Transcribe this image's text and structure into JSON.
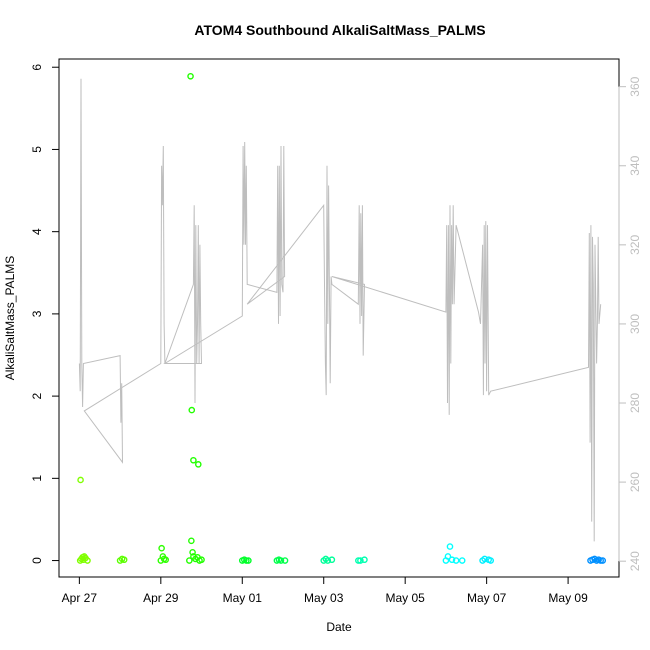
{
  "chart_data": {
    "type": "scatter",
    "title": "ATOM4 Southbound AlkaliSaltMass_PALMS",
    "xlabel": "Date",
    "ylabel": "AlkaliSaltMass_PALMS",
    "x_ticks": [
      "Apr 27",
      "Apr 29",
      "May 01",
      "May 03",
      "May 05",
      "May 07",
      "May 09"
    ],
    "x_tick_days": [
      0,
      2,
      4,
      6,
      8,
      10,
      12
    ],
    "xlim_days": [
      -0.5,
      13.25
    ],
    "ylim": [
      -0.2,
      6.1
    ],
    "y_ticks": [
      0,
      1,
      2,
      3,
      4,
      5,
      6
    ],
    "y2lim": [
      236,
      367
    ],
    "y2_ticks": [
      240,
      260,
      280,
      300,
      320,
      340,
      360
    ],
    "grid": false,
    "legend": "none",
    "series_scatter": {
      "marker": "open-circle",
      "points": [
        {
          "d": 0.02,
          "v": 0.0,
          "color": "#80ff00"
        },
        {
          "d": 0.05,
          "v": 0.02,
          "color": "#80ff00"
        },
        {
          "d": 0.08,
          "v": 0.04,
          "color": "#80ff00"
        },
        {
          "d": 0.1,
          "v": 0.01,
          "color": "#80ff00"
        },
        {
          "d": 0.12,
          "v": 0.05,
          "color": "#80ff00"
        },
        {
          "d": 0.03,
          "v": 0.98,
          "color": "#80ff00"
        },
        {
          "d": 0.15,
          "v": 0.03,
          "color": "#80ff00"
        },
        {
          "d": 0.2,
          "v": 0.0,
          "color": "#80ff00"
        },
        {
          "d": 1.0,
          "v": 0.0,
          "color": "#5cff00"
        },
        {
          "d": 1.05,
          "v": 0.02,
          "color": "#5cff00"
        },
        {
          "d": 1.1,
          "v": 0.01,
          "color": "#5cff00"
        },
        {
          "d": 2.0,
          "v": 0.0,
          "color": "#2eff00"
        },
        {
          "d": 2.02,
          "v": 0.15,
          "color": "#2eff00"
        },
        {
          "d": 2.05,
          "v": 0.05,
          "color": "#2eff00"
        },
        {
          "d": 2.08,
          "v": 0.02,
          "color": "#2eff00"
        },
        {
          "d": 2.12,
          "v": 0.01,
          "color": "#2eff00"
        },
        {
          "d": 2.7,
          "v": 0.0,
          "color": "#22ff00"
        },
        {
          "d": 2.75,
          "v": 0.24,
          "color": "#22ff00"
        },
        {
          "d": 2.78,
          "v": 0.1,
          "color": "#22ff00"
        },
        {
          "d": 2.8,
          "v": 0.05,
          "color": "#22ff00"
        },
        {
          "d": 2.73,
          "v": 5.89,
          "color": "#22ff00"
        },
        {
          "d": 2.76,
          "v": 1.83,
          "color": "#22ff00"
        },
        {
          "d": 2.8,
          "v": 1.22,
          "color": "#22ff00"
        },
        {
          "d": 2.92,
          "v": 1.17,
          "color": "#22ff00"
        },
        {
          "d": 2.85,
          "v": 0.02,
          "color": "#22ff00"
        },
        {
          "d": 2.9,
          "v": 0.04,
          "color": "#22ff00"
        },
        {
          "d": 2.95,
          "v": 0.0,
          "color": "#22ff00"
        },
        {
          "d": 3.0,
          "v": 0.01,
          "color": "#22ff00"
        },
        {
          "d": 4.0,
          "v": 0.0,
          "color": "#00ff2a"
        },
        {
          "d": 4.05,
          "v": 0.01,
          "color": "#00ff2a"
        },
        {
          "d": 4.1,
          "v": 0.0,
          "color": "#00ff2a"
        },
        {
          "d": 4.15,
          "v": 0.0,
          "color": "#00ff2a"
        },
        {
          "d": 4.85,
          "v": 0.0,
          "color": "#00ff4a"
        },
        {
          "d": 4.9,
          "v": 0.01,
          "color": "#00ff4a"
        },
        {
          "d": 4.95,
          "v": 0.0,
          "color": "#00ff4a"
        },
        {
          "d": 5.05,
          "v": 0.0,
          "color": "#00ff4a"
        },
        {
          "d": 6.0,
          "v": 0.0,
          "color": "#00ff9a"
        },
        {
          "d": 6.05,
          "v": 0.02,
          "color": "#00ff9a"
        },
        {
          "d": 6.1,
          "v": 0.0,
          "color": "#00ff9a"
        },
        {
          "d": 6.2,
          "v": 0.01,
          "color": "#00ff9a"
        },
        {
          "d": 6.85,
          "v": 0.0,
          "color": "#00ffb0"
        },
        {
          "d": 6.9,
          "v": 0.0,
          "color": "#00ffb0"
        },
        {
          "d": 7.0,
          "v": 0.01,
          "color": "#00ffb0"
        },
        {
          "d": 9.0,
          "v": 0.0,
          "color": "#00ffff"
        },
        {
          "d": 9.05,
          "v": 0.05,
          "color": "#00ffff"
        },
        {
          "d": 9.1,
          "v": 0.17,
          "color": "#00ffff"
        },
        {
          "d": 9.15,
          "v": 0.01,
          "color": "#00ffff"
        },
        {
          "d": 9.25,
          "v": 0.0,
          "color": "#00ffff"
        },
        {
          "d": 9.4,
          "v": 0.0,
          "color": "#00ffff"
        },
        {
          "d": 9.9,
          "v": 0.0,
          "color": "#00f0ff"
        },
        {
          "d": 9.95,
          "v": 0.02,
          "color": "#00f0ff"
        },
        {
          "d": 10.05,
          "v": 0.01,
          "color": "#00f0ff"
        },
        {
          "d": 10.1,
          "v": 0.0,
          "color": "#00f0ff"
        },
        {
          "d": 12.55,
          "v": 0.0,
          "color": "#0090ff"
        },
        {
          "d": 12.6,
          "v": 0.01,
          "color": "#0090ff"
        },
        {
          "d": 12.65,
          "v": 0.02,
          "color": "#0090ff"
        },
        {
          "d": 12.7,
          "v": 0.0,
          "color": "#0090ff"
        },
        {
          "d": 12.75,
          "v": 0.01,
          "color": "#0090ff"
        },
        {
          "d": 12.8,
          "v": 0.0,
          "color": "#0090ff"
        },
        {
          "d": 12.85,
          "v": 0.0,
          "color": "#0090ff"
        }
      ]
    },
    "series_line": {
      "color": "#bebebe",
      "axis": "right",
      "points": [
        [
          0.0,
          290
        ],
        [
          0.02,
          283
        ],
        [
          0.04,
          362
        ],
        [
          0.06,
          290
        ],
        [
          0.08,
          279
        ],
        [
          0.1,
          290
        ],
        [
          1.0,
          292
        ],
        [
          1.02,
          275
        ],
        [
          1.04,
          285
        ],
        [
          1.06,
          265
        ],
        [
          0.12,
          278
        ],
        [
          2.0,
          290
        ],
        [
          2.02,
          340
        ],
        [
          2.04,
          330
        ],
        [
          2.06,
          345
        ],
        [
          2.08,
          300
        ],
        [
          2.1,
          290
        ],
        [
          2.8,
          310
        ],
        [
          2.82,
          330
        ],
        [
          2.84,
          280
        ],
        [
          2.86,
          325
        ],
        [
          2.88,
          290
        ],
        [
          2.9,
          300
        ],
        [
          2.92,
          325
        ],
        [
          2.94,
          290
        ],
        [
          2.96,
          320
        ],
        [
          2.98,
          300
        ],
        [
          3.0,
          290
        ],
        [
          2.1,
          290
        ],
        [
          4.0,
          302
        ],
        [
          4.02,
          345
        ],
        [
          4.04,
          320
        ],
        [
          4.06,
          346
        ],
        [
          4.08,
          320
        ],
        [
          4.1,
          340
        ],
        [
          4.12,
          310
        ],
        [
          4.85,
          308
        ],
        [
          4.87,
          340
        ],
        [
          4.89,
          300
        ],
        [
          4.91,
          340
        ],
        [
          4.93,
          302
        ],
        [
          4.95,
          345
        ],
        [
          4.97,
          310
        ],
        [
          5.0,
          308
        ],
        [
          5.02,
          345
        ],
        [
          5.04,
          312
        ],
        [
          4.12,
          305
        ],
        [
          6.0,
          330
        ],
        [
          6.02,
          310
        ],
        [
          6.04,
          290
        ],
        [
          6.06,
          282
        ],
        [
          6.08,
          340
        ],
        [
          6.1,
          300
        ],
        [
          6.12,
          335
        ],
        [
          6.14,
          310
        ],
        [
          6.16,
          285
        ],
        [
          6.18,
          312
        ],
        [
          6.2,
          310
        ],
        [
          6.85,
          305
        ],
        [
          6.87,
          330
        ],
        [
          6.89,
          300
        ],
        [
          6.91,
          328
        ],
        [
          6.93,
          302
        ],
        [
          6.95,
          330
        ],
        [
          6.97,
          292
        ],
        [
          7.0,
          310
        ],
        [
          6.2,
          312
        ],
        [
          9.0,
          303
        ],
        [
          9.02,
          325
        ],
        [
          9.04,
          280
        ],
        [
          9.06,
          325
        ],
        [
          9.08,
          277
        ],
        [
          9.1,
          330
        ],
        [
          9.12,
          290
        ],
        [
          9.14,
          325
        ],
        [
          9.16,
          305
        ],
        [
          9.18,
          330
        ],
        [
          9.2,
          305
        ],
        [
          9.25,
          325
        ],
        [
          9.8,
          303
        ],
        [
          9.85,
          300
        ],
        [
          9.9,
          320
        ],
        [
          9.92,
          282
        ],
        [
          9.94,
          325
        ],
        [
          9.96,
          290
        ],
        [
          9.98,
          326
        ],
        [
          10.0,
          283
        ],
        [
          10.02,
          325
        ],
        [
          10.05,
          282
        ],
        [
          10.1,
          283
        ],
        [
          12.5,
          289
        ],
        [
          12.52,
          323
        ],
        [
          12.54,
          270
        ],
        [
          12.56,
          325
        ],
        [
          12.58,
          250
        ],
        [
          12.6,
          322
        ],
        [
          12.62,
          310
        ],
        [
          12.64,
          245
        ],
        [
          12.66,
          320
        ],
        [
          12.7,
          290
        ],
        [
          12.72,
          300
        ],
        [
          12.74,
          322
        ],
        [
          12.76,
          300
        ],
        [
          12.8,
          305
        ]
      ]
    }
  }
}
